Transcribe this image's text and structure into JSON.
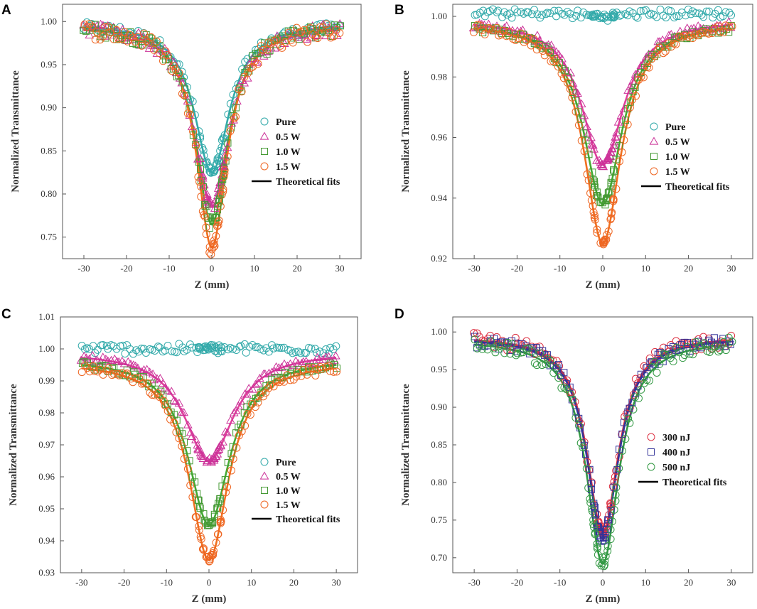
{
  "figure": {
    "background": "#ffffff",
    "axis_color": "#555555"
  },
  "chart_data": [
    {
      "panel": "A",
      "type": "scatter",
      "xlabel": "Z (mm)",
      "ylabel": "Normalized Transmittance",
      "xlim": [
        -35,
        35
      ],
      "ylim": [
        0.725,
        1.02
      ],
      "xticks": [
        "-30",
        "-20",
        "-10",
        "0",
        "10",
        "20",
        "30"
      ],
      "yticks": [
        "0.75",
        "0.80",
        "0.85",
        "0.90",
        "0.95",
        "1.00"
      ],
      "legend": {
        "position": "center-right",
        "fit_label": "Theoretical fits",
        "fit_color": "#000000"
      },
      "series": [
        {
          "name": "Pure",
          "marker": "circle",
          "color": "#33AAAA",
          "fit_color": "#33AAAA",
          "min_value": 0.825,
          "width": 5.0,
          "baseline": 0.998,
          "noise": 0.006
        },
        {
          "name": "0.5 W",
          "marker": "triangle",
          "color": "#CC3399",
          "fit_color": "#E0409A",
          "min_value": 0.785,
          "width": 5.0,
          "baseline": 0.997,
          "noise": 0.008
        },
        {
          "name": "1.0 W",
          "marker": "square",
          "color": "#449933",
          "fit_color": "#44AA33",
          "min_value": 0.765,
          "width": 4.6,
          "baseline": 0.996,
          "noise": 0.008
        },
        {
          "name": "1.5 W",
          "marker": "circle",
          "color": "#EE6622",
          "fit_color": "#F07020",
          "min_value": 0.738,
          "width": 4.3,
          "baseline": 0.995,
          "noise": 0.01
        }
      ]
    },
    {
      "panel": "B",
      "type": "scatter",
      "xlabel": "Z (mm)",
      "ylabel": "Normalized Transmittance",
      "xlim": [
        -35,
        35
      ],
      "ylim": [
        0.92,
        1.004
      ],
      "xticks": [
        "-30",
        "-20",
        "-10",
        "0",
        "10",
        "20",
        "30"
      ],
      "yticks": [
        "0.92",
        "0.94",
        "0.96",
        "0.98",
        "1.00"
      ],
      "legend": {
        "position": "center-right",
        "fit_label": "Theoretical fits",
        "fit_color": "#000000"
      },
      "series": [
        {
          "name": "Pure",
          "marker": "circle",
          "color": "#33AAAA",
          "fit_color": null,
          "min_value": 1.0,
          "width": 5.0,
          "baseline": 1.001,
          "noise": 0.0015
        },
        {
          "name": "0.5 W",
          "marker": "triangle",
          "color": "#CC3399",
          "fit_color": "#E0409A",
          "min_value": 0.951,
          "width": 6.0,
          "baseline": 0.999,
          "noise": 0.0012
        },
        {
          "name": "1.0 W",
          "marker": "square",
          "color": "#449933",
          "fit_color": "#44AA33",
          "min_value": 0.938,
          "width": 5.5,
          "baseline": 0.998,
          "noise": 0.0012
        },
        {
          "name": "1.5 W",
          "marker": "circle",
          "color": "#EE6622",
          "fit_color": "#F07020",
          "min_value": 0.925,
          "width": 5.2,
          "baseline": 0.998,
          "noise": 0.0015
        }
      ]
    },
    {
      "panel": "C",
      "type": "scatter",
      "xlabel": "Z (mm)",
      "ylabel": "Normalized Transmittance",
      "xlim": [
        -35,
        35
      ],
      "ylim": [
        0.93,
        1.01
      ],
      "xticks": [
        "-30",
        "-20",
        "-10",
        "0",
        "10",
        "20",
        "30"
      ],
      "yticks": [
        "0.93",
        "0.94",
        "0.95",
        "0.96",
        "0.97",
        "0.98",
        "0.99",
        "1.00",
        "1.01"
      ],
      "legend": {
        "position": "bottom-right",
        "fit_label": "Theoretical fits",
        "fit_color": "#000000"
      },
      "series": [
        {
          "name": "Pure",
          "marker": "circle",
          "color": "#33AAAA",
          "fit_color": null,
          "min_value": 1.0,
          "width": 5.0,
          "baseline": 1.0,
          "noise": 0.0016
        },
        {
          "name": "0.5 W",
          "marker": "triangle",
          "color": "#CC3399",
          "fit_color": "#E0409A",
          "min_value": 0.965,
          "width": 7.0,
          "baseline": 0.999,
          "noise": 0.001
        },
        {
          "name": "1.0 W",
          "marker": "square",
          "color": "#449933",
          "fit_color": "#44AA33",
          "min_value": 0.945,
          "width": 6.0,
          "baseline": 0.997,
          "noise": 0.0012
        },
        {
          "name": "1.5 W",
          "marker": "circle",
          "color": "#EE6622",
          "fit_color": "#F07020",
          "min_value": 0.934,
          "width": 5.6,
          "baseline": 0.996,
          "noise": 0.0014
        }
      ]
    },
    {
      "panel": "D",
      "type": "scatter",
      "xlabel": "Z (mm)",
      "ylabel": "Normalized Transmittance",
      "xlim": [
        -35,
        35
      ],
      "ylim": [
        0.68,
        1.02
      ],
      "xticks": [
        "-30",
        "-20",
        "-10",
        "0",
        "10",
        "20",
        "30"
      ],
      "yticks": [
        "0.70",
        "0.75",
        "0.80",
        "0.85",
        "0.90",
        "0.95",
        "1.00"
      ],
      "legend": {
        "position": "center-right",
        "fit_label": "Theoretical fits",
        "fit_color": "#000000"
      },
      "series": [
        {
          "name": "300 nJ",
          "marker": "circle",
          "color": "#DD3344",
          "fit_color": "#DD3344",
          "min_value": 0.733,
          "width": 4.5,
          "baseline": 0.995,
          "noise": 0.01
        },
        {
          "name": "400 nJ",
          "marker": "square",
          "color": "#333399",
          "fit_color": "#333399",
          "min_value": 0.725,
          "width": 4.5,
          "baseline": 0.993,
          "noise": 0.008
        },
        {
          "name": "500 nJ",
          "marker": "circle",
          "color": "#339944",
          "fit_color": "#339944",
          "min_value": 0.692,
          "width": 4.6,
          "baseline": 0.99,
          "noise": 0.01
        }
      ]
    }
  ]
}
